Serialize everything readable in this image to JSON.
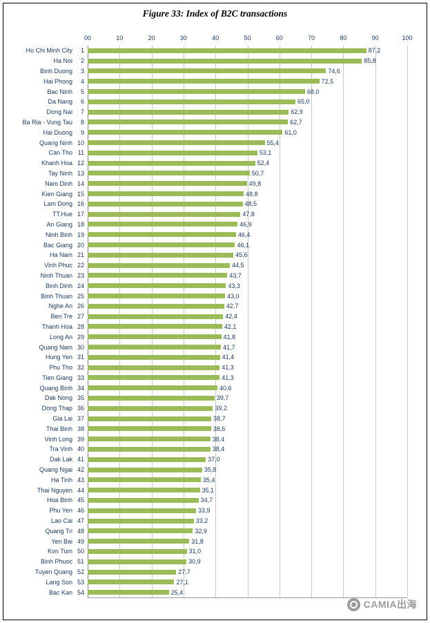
{
  "watermark": {
    "text": "CAMIA出海",
    "icon": "camia-logo-icon"
  },
  "chart_data": {
    "type": "bar",
    "orientation": "horizontal",
    "title": "Figure 33: Index of B2C transactions",
    "xlabel": "",
    "ylabel": "",
    "xlim": [
      0,
      100
    ],
    "x_ticks": [
      "00",
      "10",
      "20",
      "30",
      "40",
      "50",
      "60",
      "70",
      "80",
      "90",
      "100"
    ],
    "grid": true,
    "bar_color": "#9BBB59",
    "text_color": "#17365D",
    "categories": [
      "Ho Chi Minh City",
      "Ha Noi",
      "Binh Duong",
      "Hai Phong",
      "Bac Ninh",
      "Da Nang",
      "Dong Nai",
      "Ba Ria - Vung Tau",
      "Hai Duong",
      "Quang Ninh",
      "Can Tho",
      "Khanh Hoa",
      "Tay Ninh",
      "Nam Dinh",
      "Kien Giang",
      "Lam Dong",
      "TT.Hue",
      "An Giang",
      "Ninh Binh",
      "Bac Giang",
      "Ha Nam",
      "Vinh Phuc",
      "Ninh Thuan",
      "Binh Dinh",
      "Binh Thuan",
      "Nghe An",
      "Ben Tre",
      "Thanh Hoa",
      "Long An",
      "Quang Nam",
      "Hung Yen",
      "Phu Tho",
      "Tien Giang",
      "Quang Binh",
      "Dak Nong",
      "Dong Thap",
      "Gia Lai",
      "Thai Binh",
      "Vinh Long",
      "Tra Vinh",
      "Dak Lak",
      "Quang Ngai",
      "Ha Tinh",
      "Thai Nguyen",
      "Hoa Binh",
      "Phu Yen",
      "Lao Cai",
      "Quang Tri",
      "Yen Bai",
      "Kon Tum",
      "Binh Phuoc",
      "Tuyen Quang",
      "Lang Son",
      "Bac Kan"
    ],
    "ranks": [
      1,
      2,
      3,
      4,
      5,
      6,
      7,
      8,
      9,
      10,
      11,
      12,
      13,
      14,
      15,
      16,
      17,
      18,
      19,
      20,
      21,
      22,
      23,
      24,
      25,
      26,
      27,
      28,
      29,
      30,
      31,
      32,
      33,
      34,
      35,
      36,
      37,
      38,
      39,
      40,
      41,
      42,
      43,
      44,
      45,
      46,
      47,
      48,
      49,
      50,
      51,
      52,
      53,
      54
    ],
    "values": [
      87.2,
      85.8,
      74.6,
      72.5,
      68.0,
      65.0,
      62.9,
      62.7,
      61.0,
      55.4,
      53.1,
      52.4,
      50.7,
      49.8,
      48.8,
      48.5,
      47.8,
      46.9,
      46.4,
      46.1,
      45.6,
      44.5,
      43.7,
      43.3,
      43.0,
      42.7,
      42.4,
      42.1,
      41.8,
      41.7,
      41.4,
      41.3,
      41.3,
      40.6,
      39.7,
      39.2,
      38.7,
      38.6,
      38.4,
      38.4,
      37.0,
      35.8,
      35.4,
      35.1,
      34.7,
      33.9,
      33.2,
      32.9,
      31.8,
      31.0,
      30.9,
      27.7,
      27.1,
      25.4
    ],
    "decimal_separator": ","
  }
}
